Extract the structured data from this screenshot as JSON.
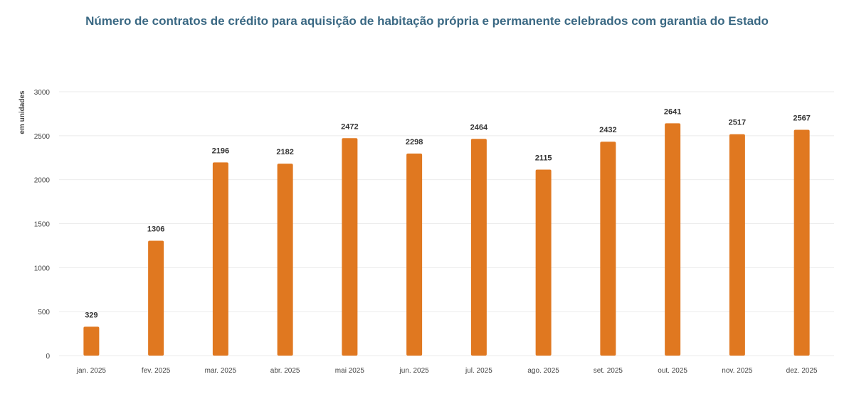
{
  "chart_data": {
    "type": "bar",
    "title": "Número de contratos de crédito para aquisição de habitação própria e permanente celebrados com garantia do Estado",
    "xlabel": "",
    "ylabel": "em unidades",
    "categories": [
      "jan. 2025",
      "fev. 2025",
      "mar. 2025",
      "abr. 2025",
      "mai 2025",
      "jun. 2025",
      "jul. 2025",
      "ago. 2025",
      "set. 2025",
      "out. 2025",
      "nov. 2025",
      "dez. 2025"
    ],
    "values": [
      329,
      1306,
      2196,
      2182,
      2472,
      2298,
      2464,
      2115,
      2432,
      2641,
      2517,
      2567
    ],
    "ylim": [
      0,
      3000
    ],
    "yticks": [
      0,
      500,
      1000,
      1500,
      2000,
      2500,
      3000
    ],
    "grid": true,
    "data_labels": true,
    "colors": {
      "bar": "#e07820",
      "title": "#3a6883"
    }
  }
}
